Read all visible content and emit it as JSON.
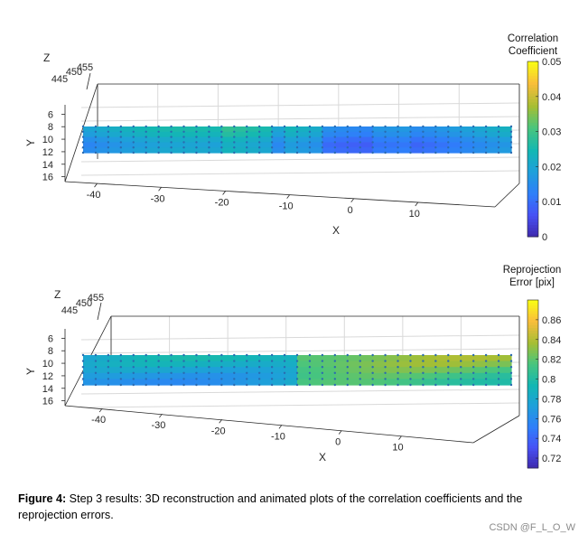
{
  "chart_data": [
    {
      "type": "surface3d",
      "title": "",
      "xlabel": "X",
      "ylabel": "Y",
      "zlabel": "Z",
      "x_ticks": [
        -40,
        -30,
        -20,
        -10,
        0,
        10
      ],
      "y_ticks": [
        6,
        8,
        10,
        12,
        14,
        16
      ],
      "z_ticks": [
        445,
        450,
        455
      ],
      "xlim": [
        -45,
        22
      ],
      "ylim": [
        4.5,
        17.5
      ],
      "colorbar": {
        "title": [
          "Correlation",
          "Coefficient"
        ],
        "range": [
          0,
          0.05
        ],
        "ticks": [
          "0",
          "0.01",
          "0.02",
          "0.03",
          "0.04",
          "0.05"
        ]
      },
      "surface_value_range": [
        0.015,
        0.03
      ]
    },
    {
      "type": "surface3d",
      "title": "",
      "xlabel": "X",
      "ylabel": "Y",
      "zlabel": "Z",
      "x_ticks": [
        -40,
        -30,
        -20,
        -10,
        0,
        10
      ],
      "y_ticks": [
        6,
        8,
        10,
        12,
        14,
        16
      ],
      "z_ticks": [
        445,
        450,
        455
      ],
      "xlim": [
        -45,
        22
      ],
      "ylim": [
        4.5,
        17.5
      ],
      "colorbar": {
        "title": [
          "Reprojection",
          "Error [pix]"
        ],
        "range": [
          0.71,
          0.88
        ],
        "ticks": [
          "0.72",
          "0.74",
          "0.76",
          "0.78",
          "0.8",
          "0.82",
          "0.84",
          "0.86"
        ]
      },
      "surface_value_range": [
        0.77,
        0.85
      ]
    }
  ],
  "caption": {
    "label": "Figure 4:",
    "text": " Step 3 results: 3D reconstruction and animated plots of the correlation coefficients and the reprojection errors."
  },
  "watermark": "CSDN @F_L_O_W",
  "colors": {
    "parula_low": "#3e26a8",
    "parula_high": "#f9fb15",
    "marker": "#2b6bb0"
  }
}
